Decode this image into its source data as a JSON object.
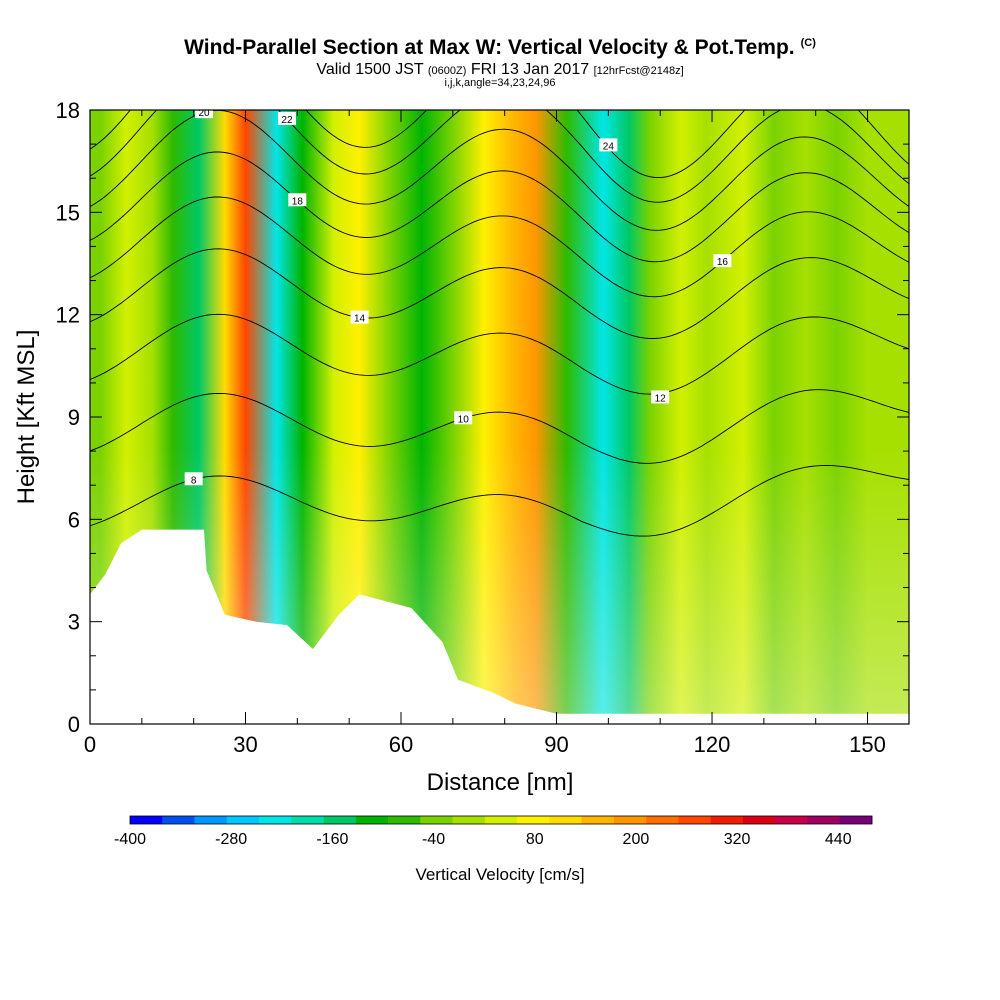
{
  "header": {
    "title": "Wind-Parallel Section at Max W: Vertical Velocity & Pot.Temp.",
    "title_unit": "(C)",
    "valid_prefix": "Valid 1500 JST",
    "valid_utc": "(0600Z)",
    "valid_date": "FRI 13 Jan 2017",
    "forecast": "[12hrFcst@2148z]",
    "grid_info": "i,j,k,angle=34,23,24,96"
  },
  "chart_data": {
    "type": "heatmap",
    "title": "Wind-Parallel Section at Max W: Vertical Velocity & Pot.Temp.",
    "xlabel": "Distance [nm]",
    "ylabel": "Height [Kft MSL]",
    "xlim": [
      0,
      158
    ],
    "ylim": [
      0,
      18
    ],
    "x_ticks": [
      "0",
      "30",
      "60",
      "90",
      "120",
      "150"
    ],
    "y_ticks": [
      "0",
      "3",
      "6",
      "9",
      "12",
      "15",
      "18"
    ],
    "x_tick_values": [
      0,
      30,
      60,
      90,
      120,
      150
    ],
    "y_tick_values": [
      0,
      3,
      6,
      9,
      12,
      15,
      18
    ],
    "colorbar": {
      "label": "Vertical Velocity [cm/s]",
      "min": -400,
      "max": 480,
      "step": 40,
      "tick_labels": [
        "-400",
        "-280",
        "-160",
        "-40",
        "80",
        "200",
        "320",
        "440"
      ],
      "tick_values": [
        -400,
        -280,
        -160,
        -40,
        80,
        200,
        320,
        440
      ],
      "colors": [
        "#0000ff",
        "#0050f0",
        "#0096ff",
        "#00c8ff",
        "#00e6e6",
        "#00dcaa",
        "#00c864",
        "#00b400",
        "#2eba00",
        "#7ad200",
        "#a6e000",
        "#d2f000",
        "#fff000",
        "#ffdc00",
        "#ffb400",
        "#ff9600",
        "#ff6e00",
        "#ff4600",
        "#f01e00",
        "#dc0014",
        "#c80046",
        "#a00064",
        "#780078"
      ]
    },
    "velocity_columns": [
      {
        "x": 2,
        "w": -20
      },
      {
        "x": 7,
        "w": 60
      },
      {
        "x": 12,
        "w": 10
      },
      {
        "x": 16,
        "w": -70
      },
      {
        "x": 21,
        "w": -150
      },
      {
        "x": 26,
        "w": 120
      },
      {
        "x": 30,
        "w": 280
      },
      {
        "x": 36,
        "w": -230
      },
      {
        "x": 41,
        "w": -100
      },
      {
        "x": 47,
        "w": 40
      },
      {
        "x": 52,
        "w": 110
      },
      {
        "x": 58,
        "w": -20
      },
      {
        "x": 64,
        "w": -100
      },
      {
        "x": 70,
        "w": -30
      },
      {
        "x": 76,
        "w": 100
      },
      {
        "x": 82,
        "w": 180
      },
      {
        "x": 86,
        "w": 230
      },
      {
        "x": 92,
        "w": -80
      },
      {
        "x": 99,
        "w": -210
      },
      {
        "x": 104,
        "w": -130
      },
      {
        "x": 108,
        "w": -10
      },
      {
        "x": 114,
        "w": 40
      },
      {
        "x": 119,
        "w": 20
      },
      {
        "x": 126,
        "w": 40
      },
      {
        "x": 132,
        "w": -10
      },
      {
        "x": 138,
        "w": 30
      },
      {
        "x": 144,
        "w": -20
      },
      {
        "x": 150,
        "w": 10
      },
      {
        "x": 156,
        "w": 20
      }
    ],
    "theta_contours": [
      {
        "label": "8"
      },
      {
        "label": "10"
      },
      {
        "label": "12"
      },
      {
        "label": "14"
      },
      {
        "label": "16"
      },
      {
        "label": "18"
      },
      {
        "label": "20"
      },
      {
        "label": "22"
      },
      {
        "label": "24"
      }
    ],
    "terrain_kft": [
      {
        "x": 0,
        "h": 3.8
      },
      {
        "x": 3,
        "h": 4.4
      },
      {
        "x": 6,
        "h": 5.3
      },
      {
        "x": 10,
        "h": 5.7
      },
      {
        "x": 22,
        "h": 5.7
      },
      {
        "x": 22.5,
        "h": 4.5
      },
      {
        "x": 26,
        "h": 3.2
      },
      {
        "x": 32,
        "h": 3.0
      },
      {
        "x": 38,
        "h": 2.9
      },
      {
        "x": 43,
        "h": 2.2
      },
      {
        "x": 48,
        "h": 3.2
      },
      {
        "x": 52,
        "h": 3.8
      },
      {
        "x": 62,
        "h": 3.4
      },
      {
        "x": 68,
        "h": 2.4
      },
      {
        "x": 71,
        "h": 1.3
      },
      {
        "x": 78,
        "h": 0.9
      },
      {
        "x": 82,
        "h": 0.6
      },
      {
        "x": 90,
        "h": 0.3
      },
      {
        "x": 158,
        "h": 0.3
      }
    ]
  }
}
